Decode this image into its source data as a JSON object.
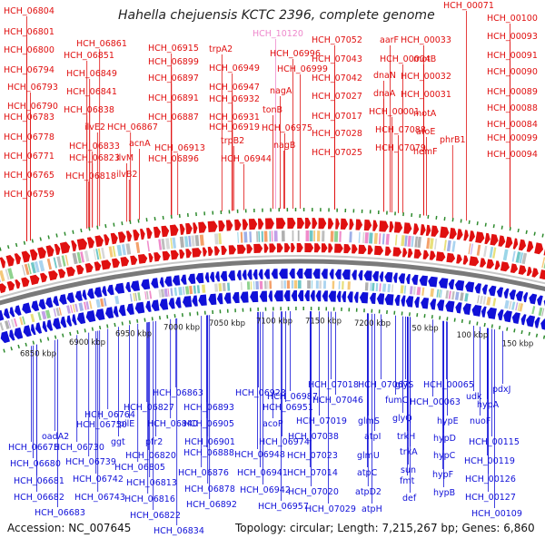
{
  "title": "Hahella chejuensis KCTC 2396, complete genome",
  "footer": {
    "accession": "Accession: NC_007645",
    "summary": "Topology: circular; Length: 7,215,267 bp; Genes: 6,860"
  },
  "colors": {
    "forward": "#e01010",
    "reverse": "#1010d8",
    "highlight": "#ee88cc",
    "backbone": "#7a7a7a",
    "tick": "#2e8b2e"
  },
  "genome": {
    "length_bp": 7215267,
    "visible_start_kbp": 6800,
    "visible_end_kbp": 200,
    "scale_labels": [
      "6850 kbp",
      "6900 kbp",
      "6950 kbp",
      "7000 kbp",
      "7050 kbp",
      "7100 kbp",
      "7150 kbp",
      "7200 kbp",
      "50 kbp",
      "100 kbp",
      "150 kbp"
    ]
  },
  "forward_genes": [
    "HCH_06804",
    "HCH_06801",
    "HCH_06800",
    "HCH_06794",
    "HCH_06793",
    "HCH_06790",
    "HCH_06783",
    "HCH_06778",
    "HCH_06771",
    "HCH_06765",
    "HCH_06759",
    "HCH_06861",
    "HCH_06851",
    "HCH_06849",
    "HCH_06841",
    "HCH_06838",
    "ilvE2",
    "HCH_06833",
    "HCH_06823",
    "HCH_06818",
    "HCH_06867",
    "ilvM",
    "ilvB2",
    "HCH_06915",
    "HCH_06899",
    "HCH_06897",
    "HCH_06891",
    "HCH_06887",
    "acnA",
    "HCH_06913",
    "HCH_06896",
    "trpA2",
    "HCH_06949",
    "HCH_06947",
    "HCH_06932",
    "HCH_06931",
    "HCH_06919",
    "trpB2",
    "HCH_06944",
    "HCH_06996",
    "HCH_06999",
    "nagA",
    "tonB",
    "HCH_06975",
    "nagB",
    "HCH_07052",
    "HCH_07043",
    "HCH_07042",
    "HCH_07027",
    "HCH_07017",
    "HCH_07028",
    "HCH_07025",
    "aarF",
    "HCH_00004",
    "dnaN",
    "dnaA",
    "HCH_00001",
    "HCH_07088",
    "HCH_07079",
    "HCH_00033",
    "motB",
    "HCH_00032",
    "HCH_00031",
    "motA",
    "aroE",
    "hemF",
    "HCH_00071",
    "HCH_00100",
    "HCH_00093",
    "HCH_00091",
    "HCH_00090",
    "HCH_00089",
    "HCH_00088",
    "HCH_00084",
    "HCH_00099",
    "HCH_00094",
    "phrB1"
  ],
  "highlight_genes": [
    "HCH_10120"
  ],
  "reverse_genes": [
    "HCH_06764",
    "HCH_06750",
    "oadA2",
    "HCH_06675",
    "HCH_06730",
    "HCH_06680",
    "HCH_06739",
    "HCH_06681",
    "HCH_06742",
    "HCH_06682",
    "HCH_06743",
    "HCH_06683",
    "HCH_06827",
    "pilE",
    "HCH_06840",
    "ggt",
    "pfr2",
    "HCH_06820",
    "HCH_06805",
    "HCH_06813",
    "HCH_06816",
    "HCH_06822",
    "HCH_06834",
    "HCH_06863",
    "HCH_06893",
    "HCH_06905",
    "HCH_06901",
    "HCH_06888",
    "HCH_06876",
    "HCH_06878",
    "HCH_06892",
    "HCH_06923",
    "HCH_06951",
    "HCH_06987",
    "acoP",
    "HCH_06974",
    "HCH_06948",
    "HCH_06941",
    "HCH_06942",
    "HCH_06957",
    "HCH_07018",
    "HCH_07019",
    "HCH_07038",
    "HCH_07023",
    "HCH_07014",
    "HCH_07020",
    "HCH_07029",
    "HCH_07067",
    "HCH_07046",
    "glmS",
    "atpI",
    "glmU",
    "atpC",
    "atpD2",
    "atpH",
    "glyS",
    "fumC",
    "glyQ",
    "trkH",
    "trkA",
    "sun",
    "fmt",
    "def",
    "HCH_00065",
    "HCH_00063",
    "hypE",
    "hypD",
    "hypC",
    "hypF",
    "hypB",
    "udk",
    "hypA",
    "nuoF",
    "HCH_00115",
    "HCH_00119",
    "HCH_00126",
    "HCH_00127",
    "HCH_00109",
    "pdxJ"
  ]
}
